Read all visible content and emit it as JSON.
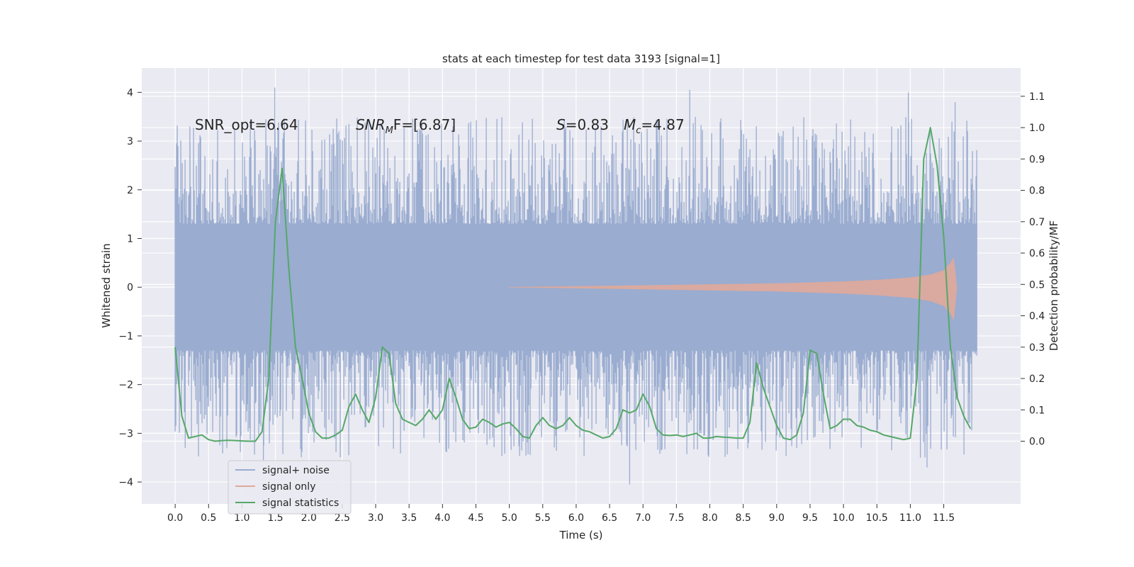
{
  "chart_data": {
    "type": "line",
    "title": "stats at each timestep for test data 3193 [signal=1]",
    "xlabel": "Time (s)",
    "ylabel_left": "Whitened strain",
    "ylabel_right": "Detection probability/MF",
    "xlim": [
      -0.5,
      12.65
    ],
    "ylim_left": [
      -4.45,
      4.5
    ],
    "ylim_right": [
      -0.2,
      1.19
    ],
    "x_ticks": [
      "0.0",
      "0.5",
      "1.0",
      "1.5",
      "2.0",
      "2.5",
      "3.0",
      "3.5",
      "4.0",
      "4.5",
      "5.0",
      "5.5",
      "6.0",
      "6.5",
      "7.0",
      "7.5",
      "8.0",
      "8.5",
      "9.0",
      "9.5",
      "10.0",
      "10.5",
      "11.0",
      "11.5"
    ],
    "y_ticks_left": [
      "4",
      "3",
      "2",
      "1",
      "0",
      "−1",
      "−2",
      "−3",
      "−4"
    ],
    "y_ticks_right": [
      "1.1",
      "1.0",
      "0.9",
      "0.8",
      "0.7",
      "0.6",
      "0.5",
      "0.4",
      "0.3",
      "0.2",
      "0.1",
      "0.0"
    ],
    "grid": true,
    "legend_position": "lower-left",
    "annotations": {
      "snr_opt": "SNR_opt=6.64",
      "snr_mf_main": "SNR",
      "snr_mf_sub": "M",
      "snr_mf_rest": "F=[6.87]",
      "s_main": "S",
      "s_rest": "=0.83",
      "mc_main": "M",
      "mc_sub": "c",
      "mc_rest": "=4.87"
    },
    "colors": {
      "background": "#eaeaf2",
      "grid": "#ffffff",
      "noise": "#9aacd0",
      "signal": "#e1a899",
      "statistics": "#55a868"
    },
    "series": [
      {
        "name": "signal+ noise",
        "axis": "left",
        "t_range": [
          0.0,
          12.0
        ],
        "envelope": {
          "typical_abs": 1.3,
          "max_abs": 4.1,
          "peaks": [
            {
              "x": 1.49,
              "y": 4.1
            },
            {
              "x": 7.7,
              "y": 4.05
            },
            {
              "x": 10.97,
              "y": 4.0
            },
            {
              "x": 11.67,
              "y": 3.8
            },
            {
              "x": 0.22,
              "y": 3.3
            },
            {
              "x": 2.6,
              "y": 3.35
            },
            {
              "x": 6.8,
              "y": -4.05
            },
            {
              "x": 11.25,
              "y": -3.7
            },
            {
              "x": 1.32,
              "y": -3.55
            },
            {
              "x": 11.15,
              "y": -3.5
            },
            {
              "x": 0.15,
              "y": -3.3
            },
            {
              "x": 9.3,
              "y": -3.3
            }
          ]
        }
      },
      {
        "name": "signal only",
        "axis": "left",
        "envelope_x": [
          5.0,
          6.0,
          7.0,
          8.0,
          9.0,
          10.0,
          10.5,
          11.0,
          11.3,
          11.5,
          11.6,
          11.65,
          11.7
        ],
        "envelope_y": [
          0.005,
          0.02,
          0.04,
          0.06,
          0.08,
          0.12,
          0.15,
          0.2,
          0.26,
          0.35,
          0.5,
          0.62,
          0.0
        ]
      },
      {
        "name": "signal statistics",
        "axis": "right",
        "x": [
          0.0,
          0.1,
          0.2,
          0.3,
          0.4,
          0.5,
          0.6,
          0.7,
          0.8,
          0.9,
          1.0,
          1.1,
          1.2,
          1.3,
          1.4,
          1.5,
          1.6,
          1.7,
          1.8,
          1.9,
          2.0,
          2.1,
          2.2,
          2.3,
          2.4,
          2.5,
          2.6,
          2.7,
          2.8,
          2.9,
          3.0,
          3.1,
          3.2,
          3.3,
          3.4,
          3.5,
          3.6,
          3.7,
          3.8,
          3.9,
          4.0,
          4.1,
          4.2,
          4.3,
          4.4,
          4.5,
          4.6,
          4.7,
          4.8,
          4.9,
          5.0,
          5.1,
          5.2,
          5.3,
          5.4,
          5.5,
          5.6,
          5.7,
          5.8,
          5.9,
          6.0,
          6.1,
          6.2,
          6.3,
          6.4,
          6.5,
          6.6,
          6.7,
          6.8,
          6.9,
          7.0,
          7.1,
          7.2,
          7.3,
          7.4,
          7.5,
          7.6,
          7.7,
          7.8,
          7.9,
          8.0,
          8.1,
          8.2,
          8.3,
          8.4,
          8.5,
          8.6,
          8.7,
          8.8,
          8.9,
          9.0,
          9.1,
          9.2,
          9.3,
          9.4,
          9.5,
          9.6,
          9.7,
          9.8,
          9.9,
          10.0,
          10.1,
          10.2,
          10.3,
          10.4,
          10.5,
          10.6,
          10.7,
          10.8,
          10.9,
          11.0,
          11.1,
          11.2,
          11.3,
          11.4,
          11.5,
          11.6,
          11.7,
          11.8,
          11.9
        ],
        "values": [
          0.3,
          0.08,
          0.01,
          0.015,
          0.02,
          0.005,
          0.0,
          0.002,
          0.003,
          0.002,
          0.001,
          0.0,
          0.0,
          0.03,
          0.2,
          0.7,
          0.87,
          0.55,
          0.3,
          0.2,
          0.09,
          0.03,
          0.01,
          0.01,
          0.02,
          0.035,
          0.11,
          0.15,
          0.1,
          0.06,
          0.14,
          0.3,
          0.28,
          0.12,
          0.07,
          0.06,
          0.05,
          0.07,
          0.1,
          0.07,
          0.1,
          0.2,
          0.14,
          0.07,
          0.04,
          0.045,
          0.07,
          0.06,
          0.045,
          0.055,
          0.06,
          0.04,
          0.015,
          0.01,
          0.05,
          0.075,
          0.05,
          0.04,
          0.05,
          0.075,
          0.05,
          0.035,
          0.03,
          0.02,
          0.01,
          0.015,
          0.04,
          0.1,
          0.09,
          0.1,
          0.15,
          0.11,
          0.04,
          0.02,
          0.018,
          0.02,
          0.015,
          0.02,
          0.025,
          0.01,
          0.01,
          0.015,
          0.013,
          0.012,
          0.01,
          0.01,
          0.06,
          0.25,
          0.17,
          0.11,
          0.05,
          0.01,
          0.005,
          0.02,
          0.09,
          0.29,
          0.28,
          0.15,
          0.04,
          0.05,
          0.07,
          0.07,
          0.05,
          0.045,
          0.035,
          0.03,
          0.02,
          0.015,
          0.01,
          0.005,
          0.01,
          0.2,
          0.9,
          1.0,
          0.88,
          0.65,
          0.3,
          0.14,
          0.08,
          0.04
        ]
      }
    ]
  }
}
